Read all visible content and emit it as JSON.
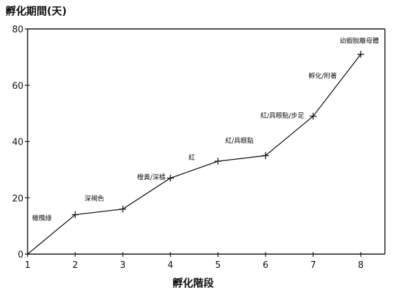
{
  "chart_data": {
    "type": "line",
    "title": "孵化期間(天)",
    "xlabel": "孵化階段",
    "ylabel": "",
    "x": [
      1,
      2,
      3,
      4,
      5,
      6,
      7,
      8
    ],
    "values": [
      0,
      14,
      16,
      27,
      33,
      35,
      49,
      71
    ],
    "xlim": [
      1,
      8
    ],
    "ylim": [
      0,
      80
    ],
    "x_ticks": [
      1,
      2,
      3,
      4,
      5,
      6,
      7,
      8
    ],
    "y_ticks": [
      0,
      20,
      40,
      60,
      80
    ],
    "grid": false,
    "legend": "none",
    "annotations": [
      {
        "text": "橄欖綠",
        "x": 1.3,
        "y": 12
      },
      {
        "text": "深褐色",
        "x": 2.4,
        "y": 19
      },
      {
        "text": "橙黃/深橘",
        "x": 3.6,
        "y": 26.5
      },
      {
        "text": "紅",
        "x": 4.45,
        "y": 33.5
      },
      {
        "text": "紅/具眼點",
        "x": 5.45,
        "y": 39.5
      },
      {
        "text": "紅/具眼點/步足",
        "x": 6.35,
        "y": 48.5
      },
      {
        "text": "孵化/附著",
        "x": 7.2,
        "y": 62.5
      },
      {
        "text": "幼蝦脫離母體",
        "x": 7.97,
        "y": 75
      }
    ]
  }
}
